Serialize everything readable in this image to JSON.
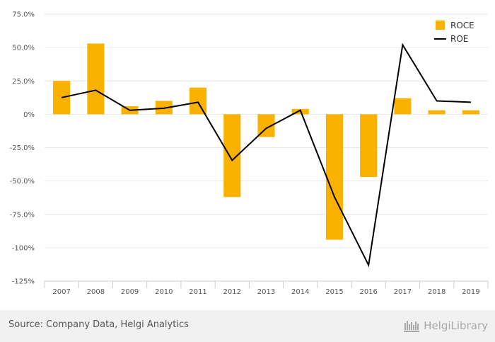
{
  "chart_data": {
    "type": "bar",
    "categories": [
      "2007",
      "2008",
      "2009",
      "2010",
      "2011",
      "2012",
      "2013",
      "2014",
      "2015",
      "2016",
      "2017",
      "2018",
      "2019"
    ],
    "series": [
      {
        "name": "ROCE",
        "type": "bar",
        "color": "#fbb100",
        "values": [
          25,
          53,
          6,
          10,
          20,
          -62,
          -17,
          4,
          -94,
          -47,
          12,
          3,
          3
        ]
      },
      {
        "name": "ROE",
        "type": "line",
        "color": "#000000",
        "values": [
          12.5,
          18,
          3,
          4.5,
          9,
          -34.5,
          -10.5,
          3,
          -62,
          -113,
          52,
          10,
          9
        ]
      }
    ],
    "yticks": [
      "75.0%",
      "50.0%",
      "25.0%",
      "0%",
      "-25.0%",
      "-50.0%",
      "-75.0%",
      "-100%",
      "-125%"
    ],
    "ylim": [
      -125,
      75
    ],
    "legend_position": "top-right",
    "grid": true
  },
  "footer": {
    "source": "Source: Company Data, Helgi Analytics",
    "brand": "HelgiLibrary"
  }
}
